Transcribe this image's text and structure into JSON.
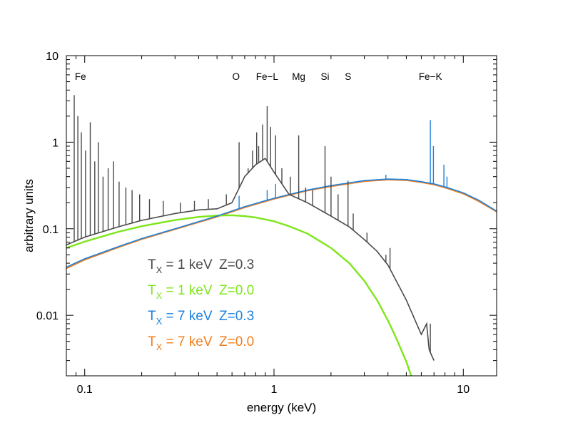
{
  "chart_data": {
    "type": "line",
    "xlabel": "energy (keV)",
    "ylabel": "arbitrary units",
    "x_scale": "log",
    "y_scale": "log",
    "xlim": [
      0.08,
      15
    ],
    "ylim": [
      0.002,
      10
    ],
    "x_ticks": [
      0.1,
      1,
      10
    ],
    "x_tick_labels": [
      "0.1",
      "1",
      "10"
    ],
    "y_ticks": [
      0.01,
      0.1,
      1,
      10
    ],
    "y_tick_labels": [
      "0.01",
      "0.1",
      "1",
      "10"
    ],
    "grid": false,
    "legend_position": "lower-left",
    "annotations": [
      {
        "text": "Fe",
        "x": 0.095
      },
      {
        "text": "O",
        "x": 0.63
      },
      {
        "text": "Fe−L",
        "x": 0.92
      },
      {
        "text": "Mg",
        "x": 1.35
      },
      {
        "text": "Si",
        "x": 1.86
      },
      {
        "text": "S",
        "x": 2.46
      },
      {
        "text": "Fe−K",
        "x": 6.7
      }
    ],
    "series": [
      {
        "name": "T_X = 1 keV  Z=0.3",
        "legend": {
          "sym": "T",
          "sub": "X",
          "rest": " = 1 keV  Z=0.3"
        },
        "color": "#4a4a4a",
        "x": [
          0.08,
          0.1,
          0.15,
          0.2,
          0.3,
          0.4,
          0.5,
          0.6,
          0.7,
          0.8,
          0.9,
          1.0,
          1.2,
          1.5,
          2.0,
          2.5,
          3.0,
          3.5,
          4.0,
          5.0,
          6.0,
          6.4,
          6.6,
          7.0
        ],
        "y": [
          0.065,
          0.08,
          0.105,
          0.125,
          0.15,
          0.165,
          0.17,
          0.2,
          0.4,
          0.55,
          0.65,
          0.45,
          0.25,
          0.2,
          0.14,
          0.105,
          0.075,
          0.055,
          0.038,
          0.015,
          0.006,
          0.008,
          0.004,
          0.003
        ],
        "lines": [
          {
            "x": 0.088,
            "peak": 3.5
          },
          {
            "x": 0.092,
            "peak": 2.0
          },
          {
            "x": 0.096,
            "peak": 1.3
          },
          {
            "x": 0.101,
            "peak": 0.8
          },
          {
            "x": 0.107,
            "peak": 1.7
          },
          {
            "x": 0.113,
            "peak": 0.6
          },
          {
            "x": 0.118,
            "peak": 1.0
          },
          {
            "x": 0.125,
            "peak": 0.4
          },
          {
            "x": 0.133,
            "peak": 0.5
          },
          {
            "x": 0.142,
            "peak": 0.6
          },
          {
            "x": 0.152,
            "peak": 0.35
          },
          {
            "x": 0.165,
            "peak": 0.3
          },
          {
            "x": 0.178,
            "peak": 0.28
          },
          {
            "x": 0.195,
            "peak": 0.25
          },
          {
            "x": 0.22,
            "peak": 0.22
          },
          {
            "x": 0.26,
            "peak": 0.21
          },
          {
            "x": 0.32,
            "peak": 0.2
          },
          {
            "x": 0.38,
            "peak": 0.21
          },
          {
            "x": 0.45,
            "peak": 0.22
          },
          {
            "x": 0.56,
            "peak": 0.25
          },
          {
            "x": 0.654,
            "peak": 1.0
          },
          {
            "x": 0.73,
            "peak": 0.5
          },
          {
            "x": 0.77,
            "peak": 0.8
          },
          {
            "x": 0.81,
            "peak": 1.3
          },
          {
            "x": 0.83,
            "peak": 0.9
          },
          {
            "x": 0.87,
            "peak": 1.6
          },
          {
            "x": 0.92,
            "peak": 2.6
          },
          {
            "x": 0.96,
            "peak": 1.5
          },
          {
            "x": 1.02,
            "peak": 1.2
          },
          {
            "x": 1.1,
            "peak": 0.5
          },
          {
            "x": 1.22,
            "peak": 0.4
          },
          {
            "x": 1.35,
            "peak": 1.2
          },
          {
            "x": 1.47,
            "peak": 0.3
          },
          {
            "x": 1.6,
            "peak": 0.28
          },
          {
            "x": 1.86,
            "peak": 0.9
          },
          {
            "x": 2.0,
            "peak": 0.4
          },
          {
            "x": 2.18,
            "peak": 0.25
          },
          {
            "x": 2.46,
            "peak": 0.35
          },
          {
            "x": 2.62,
            "peak": 0.15
          },
          {
            "x": 3.1,
            "peak": 0.09
          },
          {
            "x": 3.9,
            "peak": 0.05
          },
          {
            "x": 4.1,
            "peak": 0.06
          },
          {
            "x": 6.7,
            "peak": 0.008
          }
        ]
      },
      {
        "name": "T_X = 1 keV  Z=0.0",
        "legend": {
          "sym": "T",
          "sub": "X",
          "rest": " = 1 keV  Z=0.0"
        },
        "color": "#7ee61c",
        "x": [
          0.08,
          0.1,
          0.15,
          0.2,
          0.3,
          0.4,
          0.5,
          0.6,
          0.7,
          0.8,
          1.0,
          1.2,
          1.5,
          2.0,
          2.5,
          3.0,
          3.5,
          4.0,
          4.5,
          5.0,
          5.5
        ],
        "y": [
          0.06,
          0.071,
          0.092,
          0.107,
          0.126,
          0.137,
          0.142,
          0.143,
          0.14,
          0.135,
          0.122,
          0.107,
          0.088,
          0.06,
          0.04,
          0.025,
          0.015,
          0.0087,
          0.005,
          0.0029,
          0.0016
        ],
        "lines": []
      },
      {
        "name": "T_X = 7 keV  Z=0.3",
        "legend": {
          "sym": "T",
          "sub": "X",
          "rest": " = 7 keV  Z=0.3"
        },
        "color": "#1e82dc",
        "x": [
          0.08,
          0.1,
          0.15,
          0.2,
          0.3,
          0.5,
          0.7,
          1.0,
          1.5,
          2.0,
          3.0,
          4.0,
          5.0,
          6.0,
          7.0,
          8.0,
          10.0,
          12.0,
          15.0
        ],
        "y": [
          0.036,
          0.045,
          0.062,
          0.077,
          0.1,
          0.14,
          0.18,
          0.225,
          0.28,
          0.315,
          0.36,
          0.375,
          0.37,
          0.35,
          0.33,
          0.305,
          0.26,
          0.215,
          0.16
        ],
        "lines": [
          {
            "x": 0.654,
            "peak": 0.24
          },
          {
            "x": 0.92,
            "peak": 0.28
          },
          {
            "x": 1.02,
            "peak": 0.33
          },
          {
            "x": 1.35,
            "peak": 0.31
          },
          {
            "x": 1.86,
            "peak": 0.35
          },
          {
            "x": 2.46,
            "peak": 0.36
          },
          {
            "x": 3.9,
            "peak": 0.42
          },
          {
            "x": 6.7,
            "peak": 1.8
          },
          {
            "x": 6.95,
            "peak": 0.9
          },
          {
            "x": 7.9,
            "peak": 0.55
          },
          {
            "x": 8.2,
            "peak": 0.4
          }
        ]
      },
      {
        "name": "T_X = 7 keV  Z=0.0",
        "legend": {
          "sym": "T",
          "sub": "X",
          "rest": " = 7 keV  Z=0.0"
        },
        "color": "#f07f1e",
        "x": [
          0.08,
          0.1,
          0.15,
          0.2,
          0.3,
          0.5,
          0.7,
          1.0,
          1.5,
          2.0,
          3.0,
          4.0,
          5.0,
          6.0,
          7.0,
          8.0,
          10.0,
          12.0,
          15.0
        ],
        "y": [
          0.035,
          0.044,
          0.061,
          0.076,
          0.099,
          0.138,
          0.177,
          0.222,
          0.277,
          0.31,
          0.355,
          0.37,
          0.365,
          0.345,
          0.325,
          0.3,
          0.255,
          0.21,
          0.158
        ],
        "lines": []
      }
    ]
  }
}
